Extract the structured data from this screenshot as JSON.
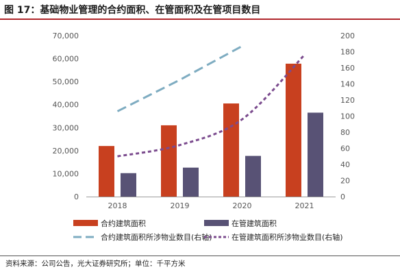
{
  "figure": {
    "title": "图 17：基础物业管理的合约面积、在管面积及在管项目数目",
    "source": "资料来源：公司公告，光大证券研究所；单位：千平方米"
  },
  "chart_data": {
    "type": "bar",
    "categories": [
      "2018",
      "2019",
      "2020",
      "2021"
    ],
    "series": [
      {
        "name": "合约建筑面积",
        "type": "bar",
        "axis": "left",
        "color": "#c8401f",
        "values": [
          22000,
          31000,
          40500,
          57800
        ]
      },
      {
        "name": "在管建筑面积",
        "type": "bar",
        "axis": "left",
        "color": "#585275",
        "values": [
          10200,
          12600,
          17700,
          36500
        ]
      },
      {
        "name": "合约建筑面积所涉物业数目(右轴)",
        "type": "line",
        "axis": "right",
        "color": "#7eacc1",
        "dash": "long",
        "values": [
          106,
          145,
          187,
          null
        ]
      },
      {
        "name": "在管建筑面积所涉物业数目(右轴)",
        "type": "line",
        "axis": "right",
        "color": "#7b4b8e",
        "dash": "short",
        "values": [
          50,
          64,
          96,
          176
        ]
      }
    ],
    "y_left": {
      "min": 0,
      "max": 70000,
      "step": 10000,
      "ticks": [
        "0",
        "10,000",
        "20,000",
        "30,000",
        "40,000",
        "50,000",
        "60,000",
        "70,000"
      ]
    },
    "y_right": {
      "min": 0,
      "max": 200,
      "step": 20,
      "ticks": [
        "0",
        "20",
        "40",
        "60",
        "80",
        "100",
        "120",
        "140",
        "160",
        "180",
        "200"
      ]
    },
    "grid": false,
    "legend": "bottom"
  }
}
